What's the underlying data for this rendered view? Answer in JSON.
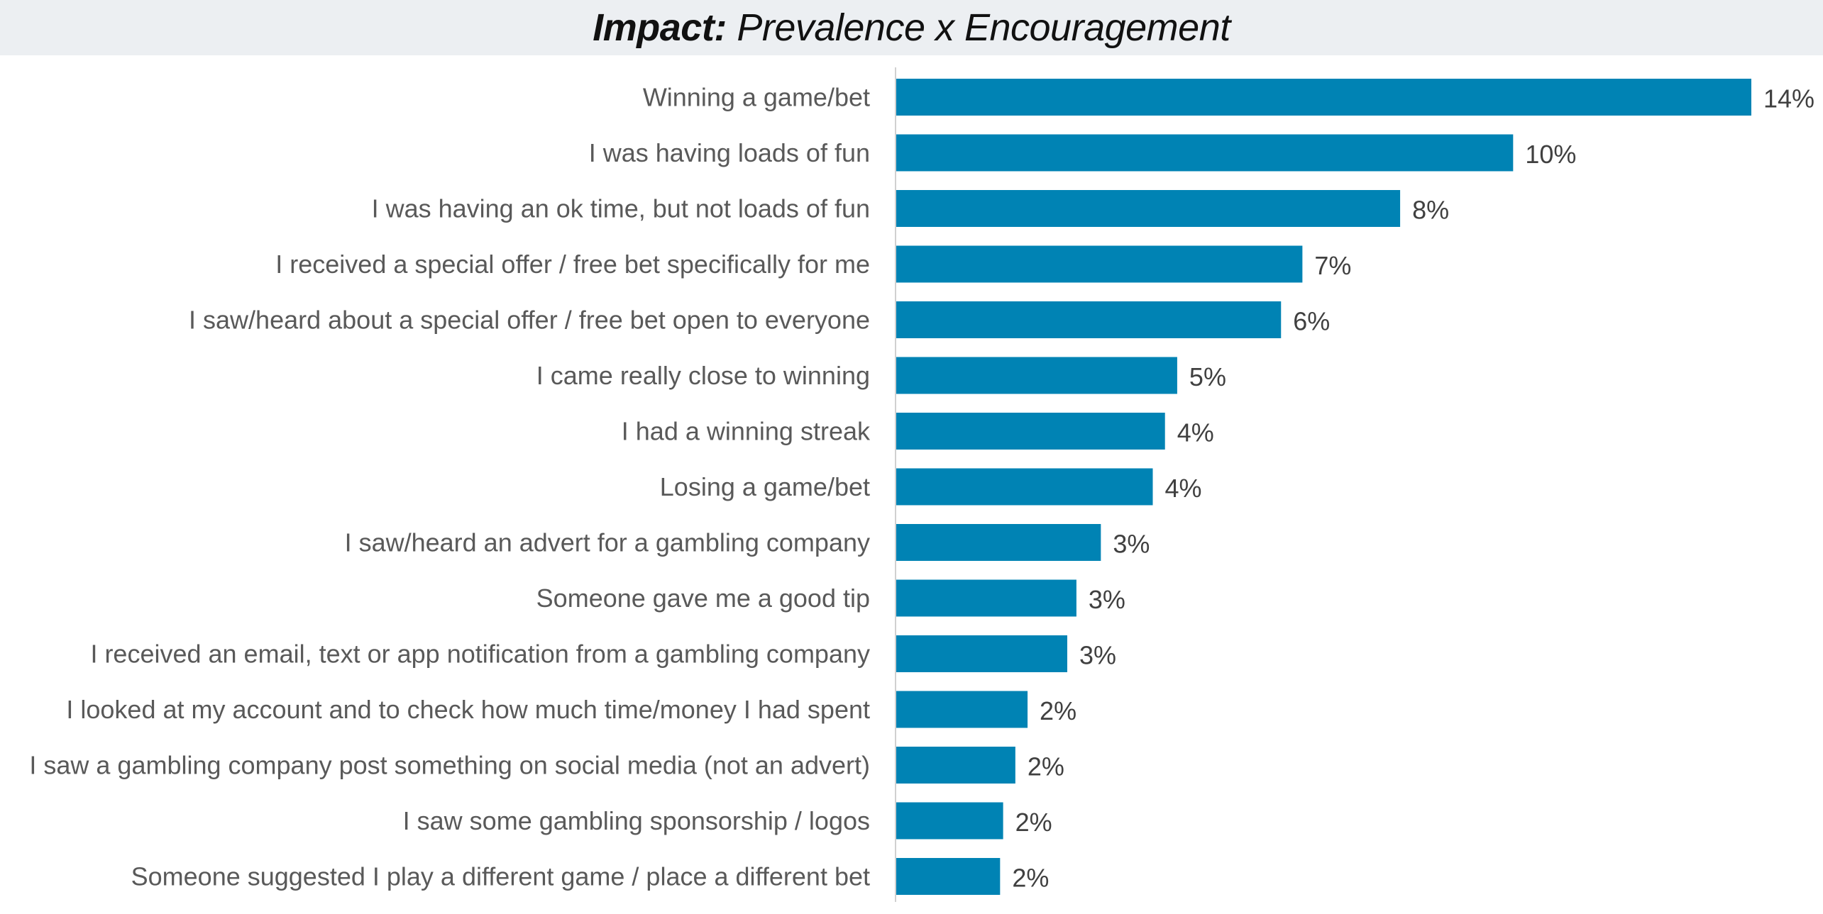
{
  "title": {
    "emphasis": "Impact:",
    "rest": " Prevalence x Encouragement"
  },
  "colors": {
    "bar": "#0083b4",
    "axis": "#d0d0d0",
    "title_bg": "#eceff2"
  },
  "chart_data": {
    "type": "bar",
    "orientation": "horizontal",
    "title": "Impact: Prevalence x Encouragement",
    "categories": [
      "Winning a game/bet",
      "I was having loads of fun",
      "I was having an ok time, but not loads of fun",
      "I received a special offer / free bet specifically for me",
      "I saw/heard about a special offer / free bet open to everyone",
      "I came really close to winning",
      "I had a winning streak",
      "Losing a game/bet",
      "I saw/heard an advert for a gambling company",
      "Someone gave me a good tip",
      "I received an email, text or app notification from a gambling company",
      "I looked at my account and to check how much time/money I had spent",
      "I saw a gambling company post something on social media (not an advert)",
      "I saw some gambling sponsorship / logos",
      "Someone suggested I play a different game / place a different bet"
    ],
    "values": [
      14,
      10.1,
      8.25,
      6.65,
      6.3,
      4.6,
      4.4,
      4.2,
      3.35,
      2.95,
      2.8,
      2.15,
      1.95,
      1.75,
      1.7
    ],
    "data_labels": [
      "14%",
      "10%",
      "8%",
      "7%",
      "6%",
      "5%",
      "4%",
      "4%",
      "3%",
      "3%",
      "3%",
      "2%",
      "2%",
      "2%",
      "2%"
    ],
    "xlim": [
      0,
      14
    ],
    "grid": false,
    "legend": "none"
  }
}
